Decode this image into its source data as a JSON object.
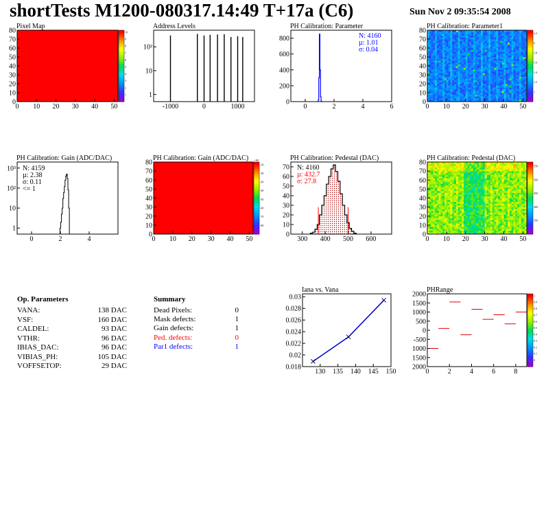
{
  "header": {
    "title": "shortTests M1200-080317.14:49 T+17a (C6)",
    "date": "Sun Nov  2 09:35:54 2008"
  },
  "chart_data": [
    {
      "id": "pixel-map",
      "type": "heatmap",
      "title": "Pixel Map",
      "xlim": [
        0,
        52
      ],
      "ylim": [
        0,
        80
      ],
      "xticks": [
        "0",
        "10",
        "20",
        "30",
        "40",
        "50"
      ],
      "yticks": [
        "0",
        "10",
        "20",
        "30",
        "40",
        "50",
        "60",
        "70",
        "80"
      ],
      "zticks": [
        "1",
        "2",
        "3",
        "4",
        "5",
        "6",
        "7",
        "8",
        "9",
        "10"
      ],
      "fill_value": 10
    },
    {
      "id": "address-levels",
      "type": "bar",
      "title": "Address Levels",
      "xlim": [
        -1500,
        1500
      ],
      "yscale": "log",
      "ylim": [
        0.5,
        500
      ],
      "xticks": [
        "-1000",
        "0",
        "1000"
      ],
      "yticks": [
        "1",
        "10",
        "10²"
      ],
      "peaks": [
        {
          "x": -1000,
          "y": 300
        },
        {
          "x": -200,
          "y": 350
        },
        {
          "x": 0,
          "y": 300
        },
        {
          "x": 180,
          "y": 320
        },
        {
          "x": 400,
          "y": 330
        },
        {
          "x": 600,
          "y": 340
        },
        {
          "x": 800,
          "y": 260
        },
        {
          "x": 1000,
          "y": 280
        },
        {
          "x": 1150,
          "y": 260
        }
      ]
    },
    {
      "id": "ph-calibration-parameter",
      "type": "bar",
      "title": "PH Calibration: Parameter",
      "xlim": [
        -1,
        6
      ],
      "ylim": [
        0,
        900
      ],
      "xticks": [
        "0",
        "2",
        "4",
        "6"
      ],
      "yticks": [
        "0",
        "200",
        "400",
        "600",
        "800"
      ],
      "stats": {
        "n": "N: 4160",
        "mu": "µ: 1.01",
        "sigma": "σ: 0.04"
      },
      "x": [
        0.92,
        0.96,
        1.0,
        1.04,
        1.08,
        1.12
      ],
      "values": [
        20,
        300,
        850,
        400,
        60,
        5
      ]
    },
    {
      "id": "ph-calibration-parameter1",
      "type": "heatmap",
      "title": "PH Calibration: Parameter1",
      "xlim": [
        0,
        52
      ],
      "ylim": [
        0,
        80
      ],
      "xticks": [
        "0",
        "10",
        "20",
        "30",
        "40",
        "50"
      ],
      "yticks": [
        "0",
        "10",
        "20",
        "30",
        "40",
        "50",
        "60",
        "70",
        "80"
      ],
      "zticks": [
        "1",
        "1.2",
        "1.4",
        "1.6",
        "1.8",
        "2",
        "2.2"
      ]
    },
    {
      "id": "ph-calibration-gain-hist",
      "type": "bar",
      "title": "PH Calibration: Gain (ADC/DAC)",
      "xlim": [
        -1,
        6
      ],
      "yscale": "log",
      "ylim": [
        0.5,
        2000
      ],
      "xticks": [
        "0",
        "2",
        "4"
      ],
      "yticks": [
        "1",
        "10",
        "10²",
        "10³"
      ],
      "stats": {
        "n": "N: 4159",
        "mu": "µ: 2.38",
        "sigma": "σ: 0.11",
        "extra": "<= 1"
      },
      "x": [
        2.0,
        2.05,
        2.1,
        2.15,
        2.2,
        2.25,
        2.3,
        2.35,
        2.4,
        2.45,
        2.5,
        2.55,
        2.6
      ],
      "values": [
        1,
        2,
        5,
        10,
        30,
        60,
        120,
        250,
        400,
        500,
        300,
        80,
        10
      ]
    },
    {
      "id": "ph-calibration-gain-map",
      "type": "heatmap",
      "title": "PH Calibration: Gain (ADC/DAC)",
      "xlim": [
        0,
        52
      ],
      "ylim": [
        0,
        80
      ],
      "xticks": [
        "0",
        "10",
        "20",
        "30",
        "40",
        "50"
      ],
      "yticks": [
        "0",
        "10",
        "20",
        "30",
        "40",
        "50",
        "60",
        "70",
        "80"
      ],
      "zticks": [
        "-80",
        "-70",
        "-60",
        "-50",
        "-40",
        "-30",
        "-20",
        "-10"
      ],
      "zmultiplier": "×10⁶"
    },
    {
      "id": "ph-calibration-pedestal-hist",
      "type": "bar",
      "title": "PH Calibration: Pedestal (DAC)",
      "xlim": [
        250,
        690
      ],
      "ylim": [
        0,
        75
      ],
      "xticks": [
        "300",
        "400",
        "500",
        "600"
      ],
      "yticks": [
        "0",
        "10",
        "20",
        "30",
        "40",
        "50",
        "60",
        "70"
      ],
      "stats": {
        "n": "N: 4160",
        "mu": "µ: 432.7",
        "sigma": "σ: 27.8"
      },
      "cut_lines": [
        {
          "x": 370,
          "y": 28
        },
        {
          "x": 500,
          "y": 28
        }
      ],
      "x": [
        340,
        350,
        360,
        370,
        380,
        390,
        400,
        410,
        420,
        430,
        440,
        450,
        460,
        470,
        480,
        490,
        500,
        510,
        520,
        530
      ],
      "values": [
        1,
        2,
        5,
        10,
        20,
        30,
        40,
        52,
        60,
        68,
        72,
        65,
        55,
        42,
        30,
        20,
        12,
        6,
        3,
        1
      ]
    },
    {
      "id": "ph-calibration-pedestal-map",
      "type": "heatmap",
      "title": "PH Calibration: Pedestal (DAC)",
      "xlim": [
        0,
        52
      ],
      "ylim": [
        0,
        80
      ],
      "xticks": [
        "0",
        "10",
        "20",
        "30",
        "40",
        "50"
      ],
      "yticks": [
        "0",
        "10",
        "20",
        "30",
        "40",
        "50",
        "60",
        "70",
        "80"
      ],
      "zticks": [
        "350",
        "400",
        "450",
        "500",
        "550"
      ]
    },
    {
      "id": "iana-vs-vana",
      "type": "line",
      "title": "Iana vs. Vana",
      "xlim": [
        125,
        150
      ],
      "ylim": [
        0.018,
        0.0305
      ],
      "xticks": [
        "130",
        "135",
        "140",
        "145",
        "150"
      ],
      "yticks": [
        "0.018",
        "0.02",
        "0.022",
        "0.024",
        "0.026",
        "0.028",
        "0.03"
      ],
      "x": [
        128,
        138,
        148
      ],
      "values": [
        0.0189,
        0.0231,
        0.0294
      ]
    },
    {
      "id": "ph-range",
      "type": "scatter",
      "title": "PHRange",
      "xlim": [
        0,
        9
      ],
      "ylim": [
        -2000,
        2000
      ],
      "xticks": [
        "0",
        "2",
        "4",
        "6",
        "8"
      ],
      "yticks": [
        "2000",
        "1500",
        "1000",
        "500",
        "0",
        "-500",
        "1000",
        "1500",
        "2000"
      ],
      "zticks": [
        "0",
        "0.1",
        "0.2",
        "0.3",
        "0.4",
        "0.5",
        "0.6",
        "0.7",
        "0.8",
        "0.9",
        "1"
      ],
      "x": [
        0.5,
        1.5,
        2.5,
        3.5,
        4.5,
        5.5,
        6.5,
        7.5,
        8.5
      ],
      "values": [
        -1000,
        100,
        1550,
        -250,
        1150,
        600,
        850,
        350,
        1000
      ]
    }
  ],
  "op_parameters": {
    "heading": "Op. Parameters",
    "rows": [
      {
        "name": "VANA:",
        "value": "138 DAC"
      },
      {
        "name": "VSF:",
        "value": "160 DAC"
      },
      {
        "name": "CALDEL:",
        "value": "93 DAC"
      },
      {
        "name": "VTHR:",
        "value": "96 DAC"
      },
      {
        "name": "IBIAS_DAC:",
        "value": "96 DAC"
      },
      {
        "name": "VIBIAS_PH:",
        "value": "105 DAC"
      },
      {
        "name": "VOFFSETOP:",
        "value": "29 DAC"
      }
    ]
  },
  "summary": {
    "heading": "Summary",
    "rows": [
      {
        "name": "Dead Pixels:",
        "value": "0",
        "color": "#000000"
      },
      {
        "name": "Mask defects:",
        "value": "1",
        "color": "#000000"
      },
      {
        "name": "Gain defects:",
        "value": "1",
        "color": "#000000"
      },
      {
        "name": "Ped. defects:",
        "value": "0",
        "color": "#ff0000"
      },
      {
        "name": "Par1 defects:",
        "value": "1",
        "color": "#0000ff"
      }
    ]
  }
}
